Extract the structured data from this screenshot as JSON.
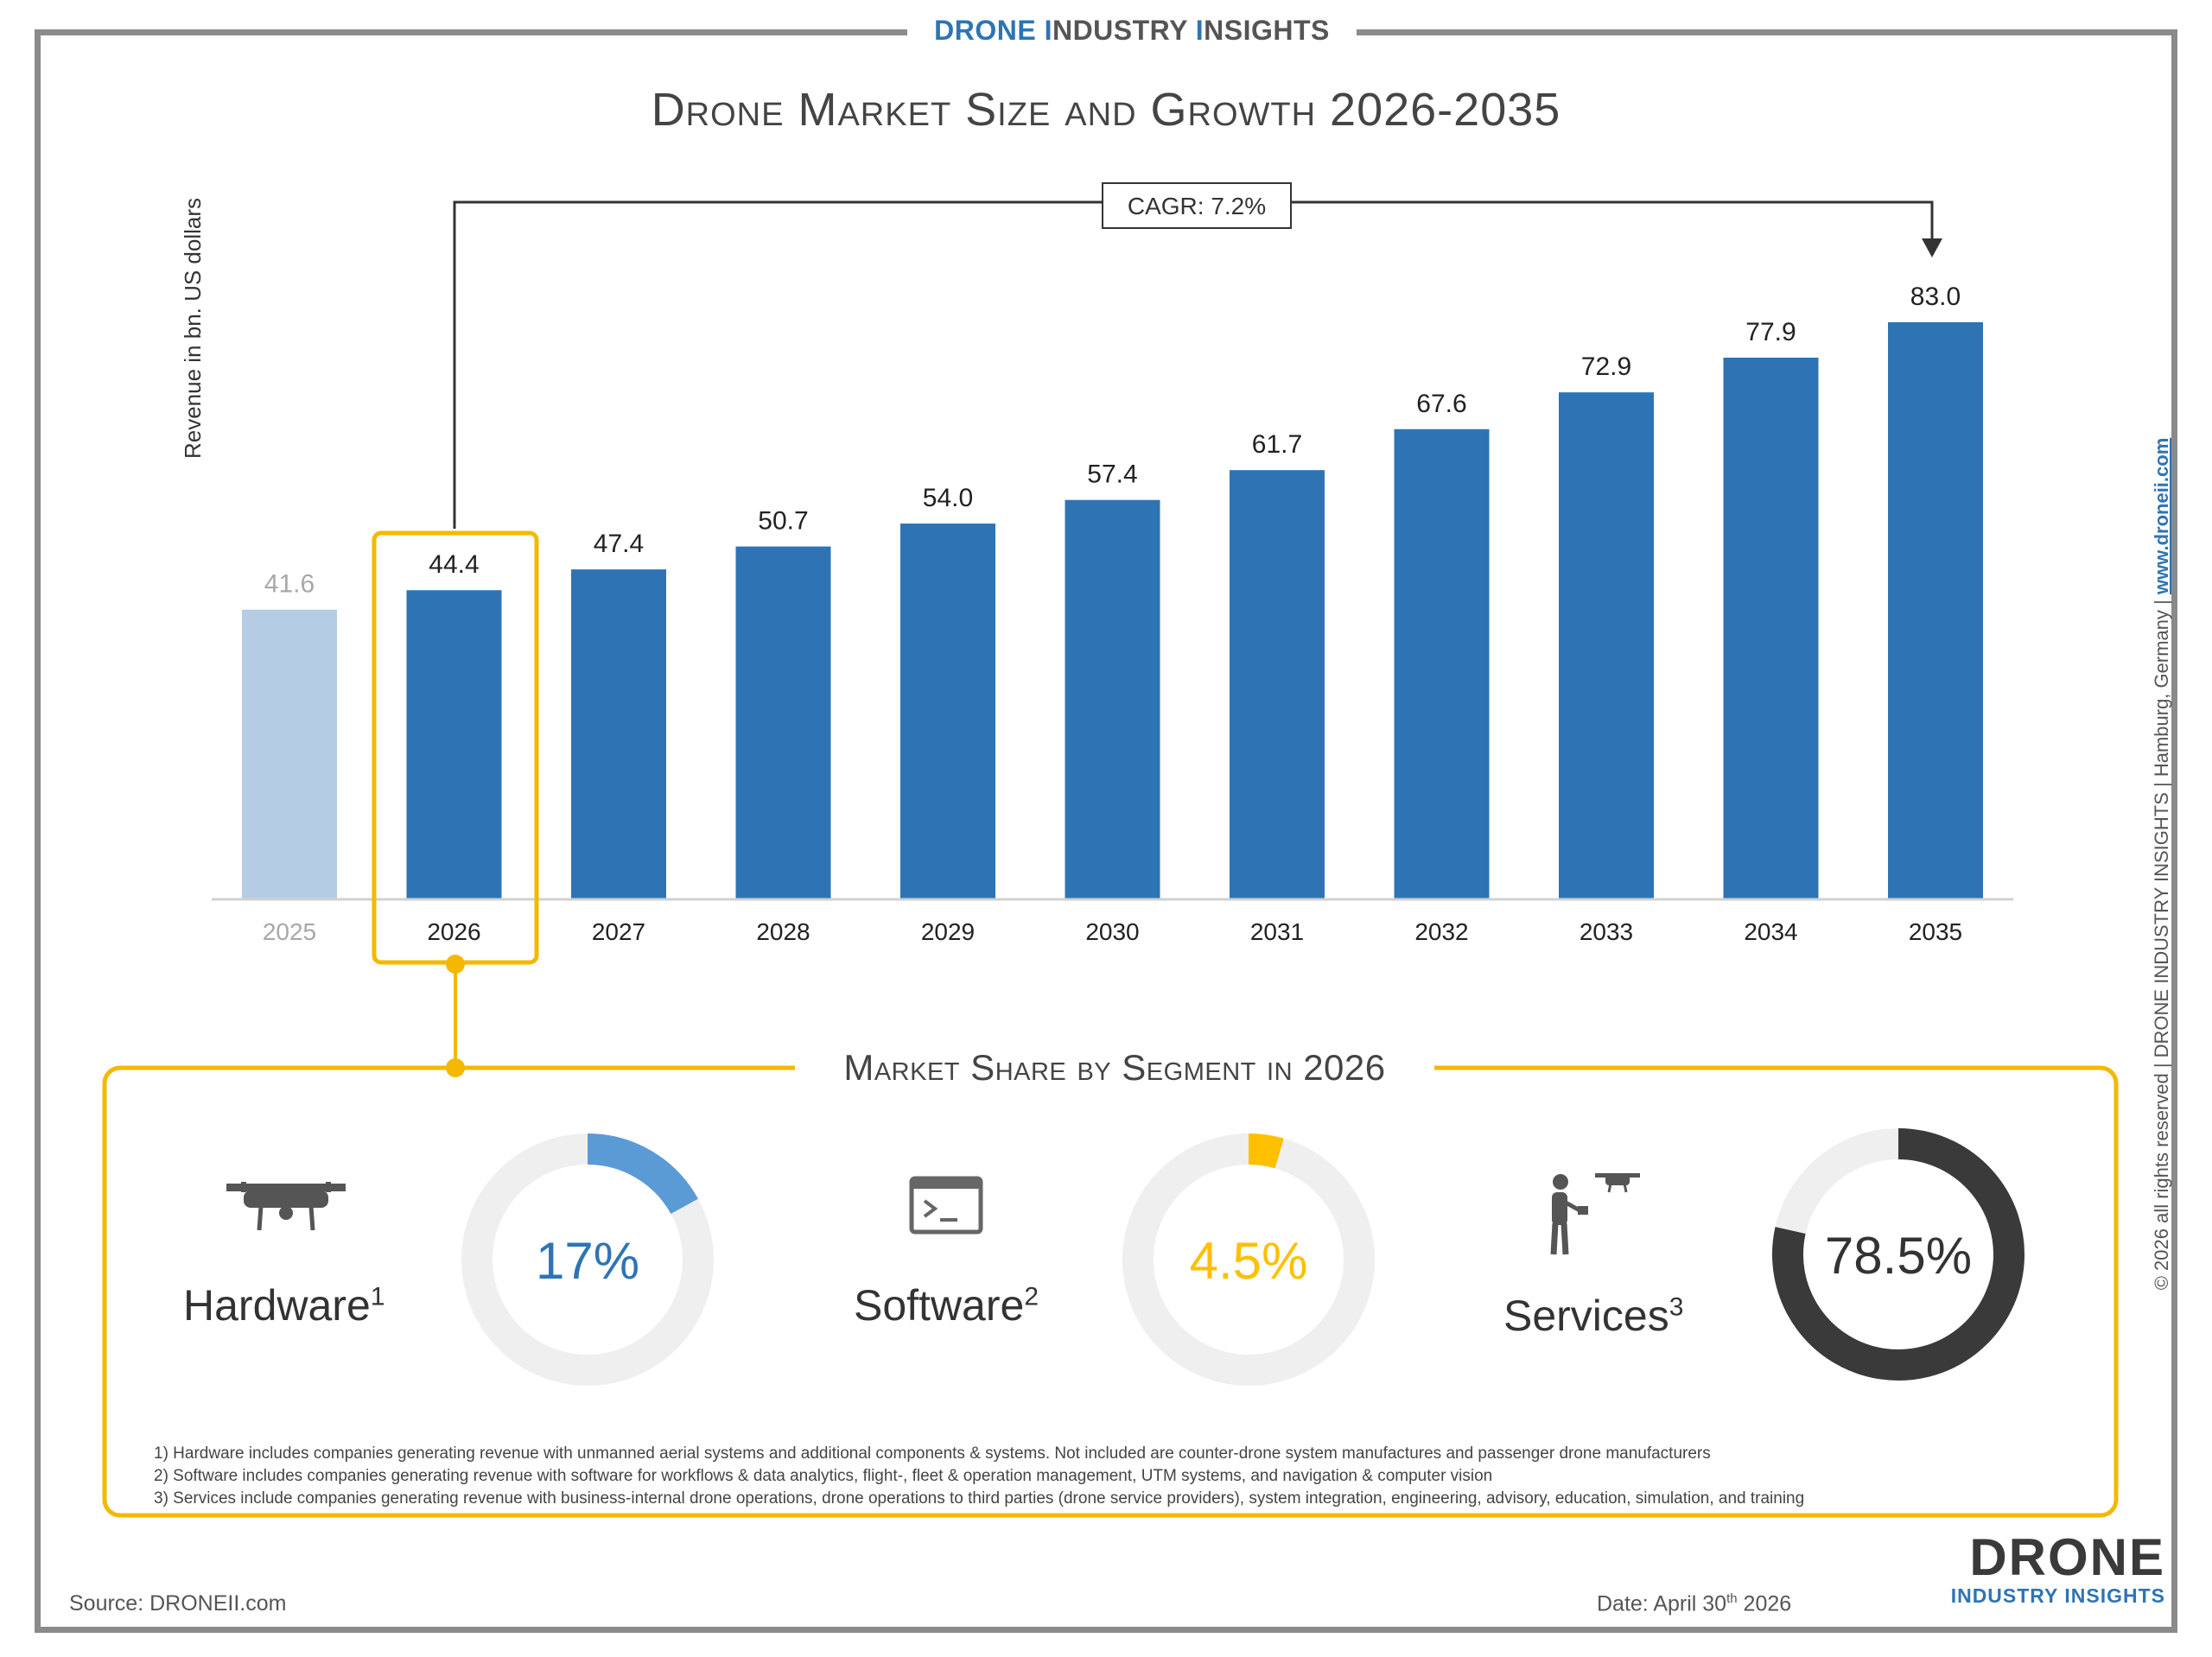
{
  "brand_top": {
    "part1_blue": "DRONE ",
    "part1_rest": "I",
    "part2_blue": "NDUSTRY ",
    "part2_rest": "I",
    "part3": "NSIGHTS"
  },
  "title": "Drone Market Size and Growth 2026-2035",
  "cagr_label": "CAGR: 7.2%",
  "chart_data": {
    "type": "bar",
    "ylabel": "Revenue in bn. US dollars",
    "categories": [
      "2025",
      "2026",
      "2027",
      "2028",
      "2029",
      "2030",
      "2031",
      "2032",
      "2033",
      "2034",
      "2035"
    ],
    "values": [
      41.6,
      44.4,
      47.4,
      50.7,
      54.0,
      57.4,
      61.7,
      67.6,
      72.9,
      77.9,
      83.0
    ],
    "value_labels": [
      "41.6",
      "44.4",
      "47.4",
      "50.7",
      "54.0",
      "57.4",
      "61.7",
      "67.6",
      "72.9",
      "77.9",
      "83.0"
    ],
    "ylim": [
      0,
      83
    ],
    "grid": false,
    "colors": {
      "historical": "#b4cce4",
      "forecast": "#2e74b5",
      "highlight": "#f5b800"
    },
    "highlighted_category": "2026"
  },
  "segments": {
    "title": "Market Share by Segment in 2026",
    "items": [
      {
        "name": "Hardware",
        "sup": "1",
        "share": 0.17,
        "label": "17%",
        "color": "#5b9bd5",
        "text_color": "#2e74b5",
        "icon": "drone-icon"
      },
      {
        "name": "Software",
        "sup": "2",
        "share": 0.045,
        "label": "4.5%",
        "color": "#ffc000",
        "text_color": "#ffc000",
        "icon": "terminal-window-icon"
      },
      {
        "name": "Services",
        "sup": "3",
        "share": 0.785,
        "label": "78.5%",
        "color": "#3a3a3a",
        "text_color": "#333333",
        "icon": "drone-pilot-icon"
      }
    ]
  },
  "footnotes": [
    "1) Hardware includes companies generating revenue with unmanned aerial systems and additional components & systems. Not included are counter-drone system manufactures and passenger drone manufacturers",
    "2) Software includes companies generating revenue with software for workflows & data analytics, flight-, fleet & operation management, UTM systems, and navigation & computer vision",
    "3) Services include companies generating revenue with business-internal drone operations, drone operations to third parties (drone service providers), system integration, engineering, advisory, education, simulation, and training"
  ],
  "side_text": {
    "copyright": "© 2026 all rights reserved | DRONE INDUSTRY INSIGHTS | Hamburg, Germany | ",
    "link": "www.droneii.com"
  },
  "source": "Source: DRONEII.com",
  "date": {
    "prefix": "Date: April 30",
    "sup": "th",
    "suffix": " 2026"
  },
  "logo": {
    "big": "DRONE",
    "small": "INDUSTRY INSIGHTS"
  }
}
